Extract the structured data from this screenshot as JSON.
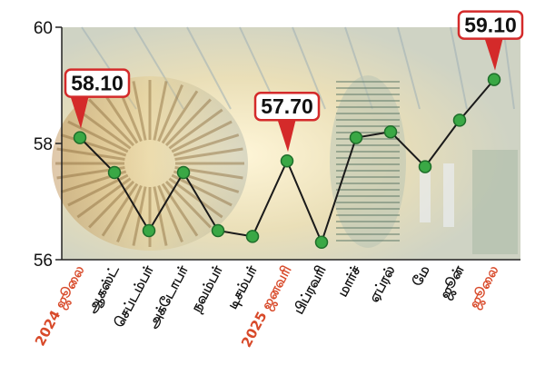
{
  "chart_data": {
    "type": "line",
    "categories": [
      "2024 ஜூலை",
      "ஆகஸ்ட்",
      "செப்டம்பர்",
      "அக்டோபர்",
      "நவம்பர்",
      "டிசம்பர்",
      "2025 ஜனவரி",
      "பிப்ரவரி",
      "மார்ச்",
      "ஏப்ரல்",
      "மே",
      "ஜூன்",
      "ஜூலை"
    ],
    "highlight_categories": [
      0,
      6,
      12
    ],
    "series": [
      {
        "values": [
          58.1,
          57.5,
          56.5,
          57.5,
          56.5,
          56.4,
          57.7,
          56.3,
          58.1,
          58.2,
          57.6,
          58.4,
          59.1
        ]
      }
    ],
    "ylim": [
      56,
      60
    ],
    "yticks": [
      56,
      58,
      60
    ],
    "callouts": [
      {
        "index": 0,
        "text": "58.10"
      },
      {
        "index": 6,
        "text": "57.70"
      },
      {
        "index": 12,
        "text": "59.10"
      }
    ],
    "grid": false,
    "colors": {
      "line": "#1a1a1a",
      "marker": "#3aa845",
      "marker_edge": "#1e6e2a",
      "callout_border": "#d42a2a",
      "highlight_label": "#d84a2a",
      "label": "#111111"
    }
  }
}
